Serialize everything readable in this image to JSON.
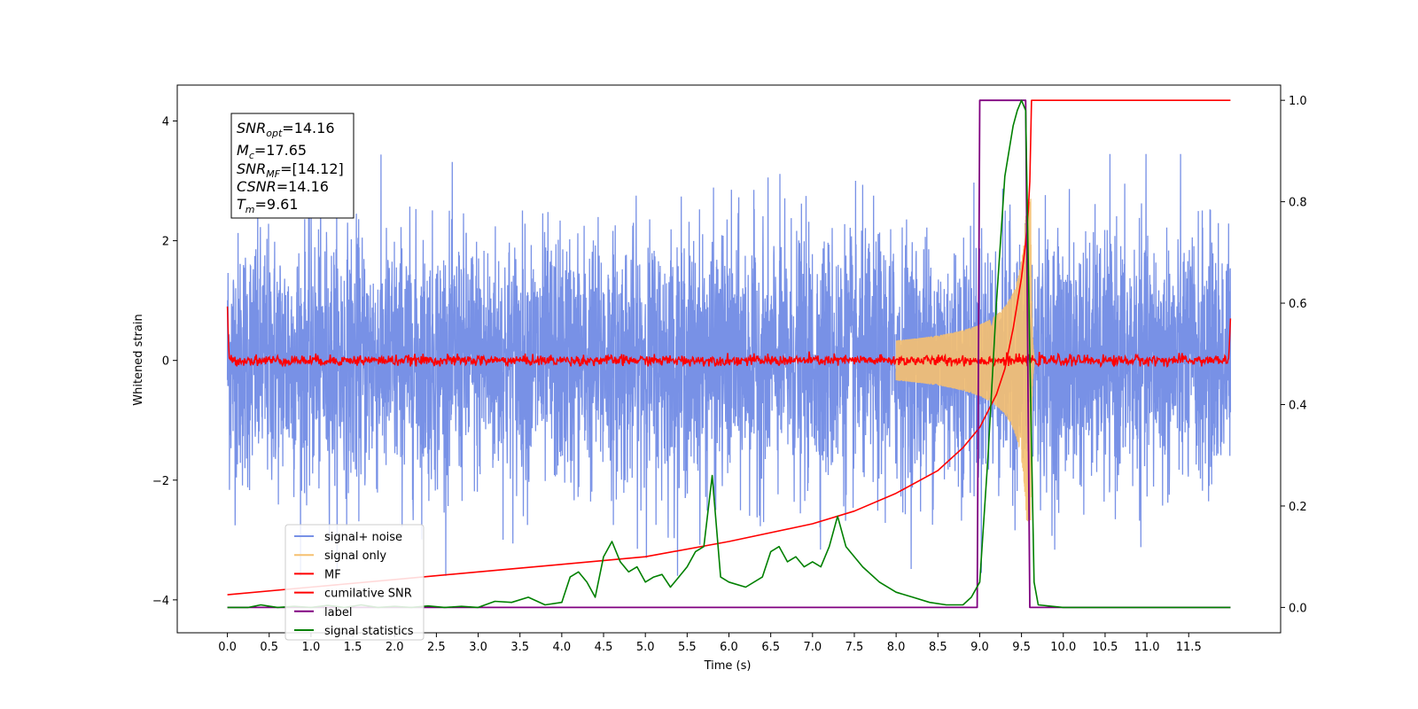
{
  "chart_data": {
    "type": "line",
    "xlabel": "Time (s)",
    "ylabel": "Whitened strain",
    "xlim": [
      -0.6,
      12.6
    ],
    "ylim": [
      -4.55,
      4.6
    ],
    "y2lim": [
      -0.05,
      1.03
    ],
    "x_ticks": [
      "0.0",
      "0.5",
      "1.0",
      "1.5",
      "2.0",
      "2.5",
      "3.0",
      "3.5",
      "4.0",
      "4.5",
      "5.0",
      "5.5",
      "6.0",
      "6.5",
      "7.0",
      "7.5",
      "8.0",
      "8.5",
      "9.0",
      "9.5",
      "10.0",
      "10.5",
      "11.0",
      "11.5"
    ],
    "y_ticks": [
      "4",
      "2",
      "0",
      "−2",
      "−4"
    ],
    "y_ticks_values": [
      4,
      2,
      0,
      -2,
      -4
    ],
    "y2_ticks": [
      "1.0",
      "0.8",
      "0.6",
      "0.4",
      "0.2",
      "0.0"
    ],
    "y2_ticks_values": [
      1.0,
      0.8,
      0.6,
      0.4,
      0.2,
      0.0
    ],
    "annotation": {
      "snr_opt_label": "SNR",
      "snr_opt_sub": "opt",
      "snr_opt_value": "=14.16",
      "mc_label": "M",
      "mc_sub": "c",
      "mc_value": "=17.65",
      "snr_mf_label": "SNR",
      "snr_mf_sub": "MF",
      "snr_mf_value": "=[14.12]",
      "csnr_label": "CSNR",
      "csnr_value": "=14.16",
      "tm_label": "T",
      "tm_sub": "m",
      "tm_value": "=9.61"
    },
    "series": [
      {
        "name": "signal+ noise",
        "axis": "left",
        "color": "#7891e6",
        "kind": "noise",
        "t_range": [
          0.0,
          12.0
        ],
        "amplitude_range": [
          -3.6,
          3.45
        ]
      },
      {
        "name": "signal only",
        "axis": "left",
        "color": "#f5c070",
        "kind": "chirp",
        "merger_time": 9.61,
        "peak_amplitude": 2.7
      },
      {
        "name": "MF",
        "axis": "left",
        "color": "#ff0000",
        "kind": "mf",
        "t_range": [
          0.0,
          12.0
        ],
        "edge_values": [
          1.0,
          0.75
        ],
        "peak": 0.25
      },
      {
        "name": "cumilative SNR",
        "axis": "right",
        "color": "#ff0000",
        "x": [
          0.0,
          1.0,
          2.0,
          3.0,
          4.0,
          5.0,
          6.0,
          7.0,
          7.5,
          8.0,
          8.5,
          8.8,
          9.0,
          9.2,
          9.3,
          9.4,
          9.5,
          9.55,
          9.58,
          9.6,
          9.62,
          12.0
        ],
        "y": [
          0.025,
          0.04,
          0.055,
          0.07,
          0.085,
          0.1,
          0.13,
          0.165,
          0.19,
          0.225,
          0.27,
          0.315,
          0.355,
          0.42,
          0.47,
          0.55,
          0.65,
          0.72,
          0.78,
          0.84,
          1.0,
          1.0
        ]
      },
      {
        "name": "label",
        "axis": "right",
        "color": "#800080",
        "x": [
          0.0,
          8.97,
          9.0,
          9.55,
          9.6,
          12.0
        ],
        "y": [
          0.0,
          0.0,
          1.0,
          1.0,
          0.0,
          0.0
        ]
      },
      {
        "name": "signal statistics",
        "axis": "right",
        "color": "#008000",
        "x": [
          0.0,
          0.25,
          0.4,
          0.6,
          0.8,
          1.0,
          1.2,
          1.4,
          1.6,
          1.8,
          2.0,
          2.2,
          2.4,
          2.6,
          2.8,
          3.0,
          3.2,
          3.4,
          3.6,
          3.8,
          4.0,
          4.1,
          4.2,
          4.3,
          4.4,
          4.5,
          4.6,
          4.7,
          4.8,
          4.9,
          5.0,
          5.1,
          5.2,
          5.3,
          5.4,
          5.5,
          5.6,
          5.7,
          5.8,
          5.9,
          6.0,
          6.2,
          6.4,
          6.5,
          6.6,
          6.7,
          6.8,
          6.9,
          7.0,
          7.1,
          7.2,
          7.3,
          7.4,
          7.5,
          7.6,
          7.8,
          8.0,
          8.2,
          8.4,
          8.6,
          8.8,
          8.9,
          9.0,
          9.1,
          9.2,
          9.3,
          9.4,
          9.45,
          9.5,
          9.55,
          9.6,
          9.65,
          9.7,
          10.0,
          12.0
        ],
        "y": [
          0.0,
          0.0,
          0.005,
          0.0,
          0.002,
          0.0,
          0.004,
          0.0,
          0.005,
          0.0,
          0.002,
          0.0,
          0.003,
          0.0,
          0.002,
          0.0,
          0.012,
          0.01,
          0.02,
          0.005,
          0.01,
          0.06,
          0.07,
          0.05,
          0.02,
          0.1,
          0.13,
          0.09,
          0.07,
          0.08,
          0.05,
          0.06,
          0.065,
          0.04,
          0.06,
          0.08,
          0.11,
          0.12,
          0.26,
          0.06,
          0.05,
          0.04,
          0.06,
          0.11,
          0.12,
          0.09,
          0.1,
          0.08,
          0.09,
          0.08,
          0.12,
          0.18,
          0.12,
          0.1,
          0.08,
          0.05,
          0.03,
          0.02,
          0.01,
          0.005,
          0.005,
          0.02,
          0.05,
          0.3,
          0.6,
          0.85,
          0.95,
          0.98,
          1.0,
          0.98,
          0.5,
          0.05,
          0.005,
          0.0,
          0.0
        ]
      }
    ],
    "legend_position": "lower left",
    "grid": false
  }
}
